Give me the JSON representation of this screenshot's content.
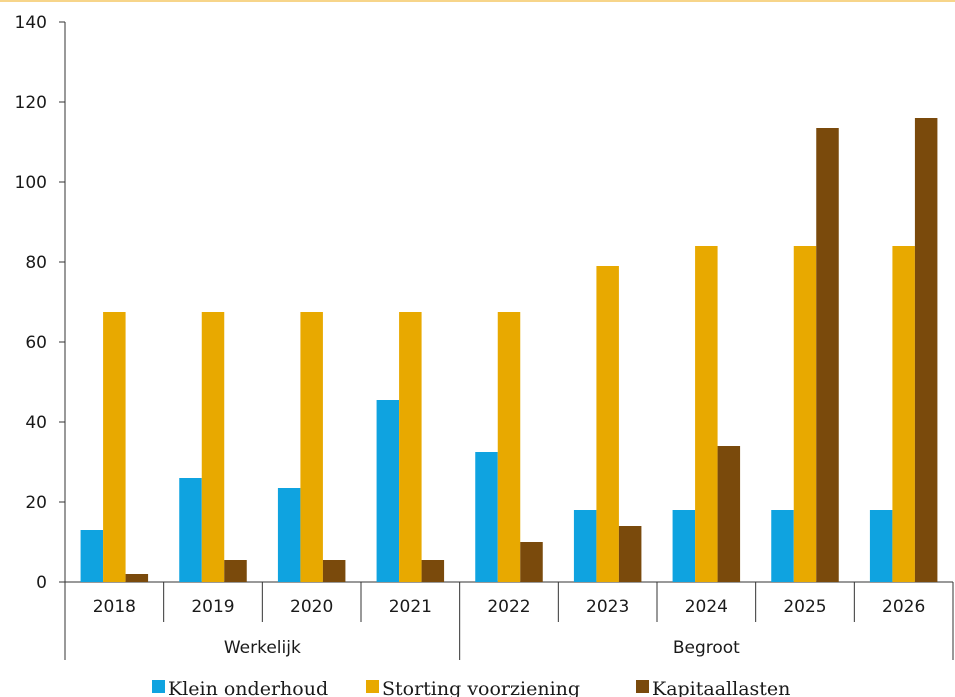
{
  "chart_data": {
    "type": "bar",
    "title": "",
    "xlabel": "",
    "ylabel": "",
    "ylim": [
      0,
      140
    ],
    "yticks": [
      0,
      20,
      40,
      60,
      80,
      100,
      120,
      140
    ],
    "categories": [
      "2018",
      "2019",
      "2020",
      "2021",
      "2022",
      "2023",
      "2024",
      "2025",
      "2026"
    ],
    "groups": [
      {
        "label": "Werkelijk",
        "categories": [
          "2018",
          "2019",
          "2020",
          "2021"
        ]
      },
      {
        "label": "Begroot",
        "categories": [
          "2022",
          "2023",
          "2024",
          "2025",
          "2026"
        ]
      }
    ],
    "series": [
      {
        "name": "Klein onderhoud",
        "color": "#0fa3e0",
        "values": [
          13,
          26,
          23.5,
          45.5,
          32.5,
          18,
          18,
          18,
          18
        ]
      },
      {
        "name": "Storting voorziening",
        "color": "#e8a900",
        "values": [
          67.5,
          67.5,
          67.5,
          67.5,
          67.5,
          79,
          84,
          84,
          84
        ]
      },
      {
        "name": "Kapitaallasten",
        "color": "#7a4a0c",
        "values": [
          2,
          5.5,
          5.5,
          5.5,
          10,
          14,
          34,
          113.5,
          116
        ]
      }
    ],
    "legend_position": "bottom",
    "grid": false
  }
}
